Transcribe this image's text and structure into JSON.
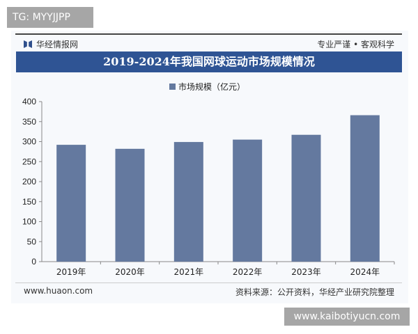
{
  "watermark_top": "TG: MYYJJPP",
  "watermark_bottom": "www.kaibotiyucn.com",
  "header": {
    "brand": "华经情报网",
    "slogan": "专业严谨 • 客观科学"
  },
  "footer": {
    "site": "www.huaon.com",
    "source": "资料来源：公开资料，华经产业研究院整理"
  },
  "colors": {
    "bar": "#64799f",
    "title_bg": "#2f5494"
  },
  "chart_data": {
    "type": "bar",
    "title": "2019-2024年我国网球运动市场规模情况",
    "categories": [
      "2019年",
      "2020年",
      "2021年",
      "2022年",
      "2023年",
      "2024年"
    ],
    "series": [
      {
        "name": "市场规模（亿元）",
        "values": [
          292,
          282,
          299,
          305,
          317,
          366
        ]
      }
    ],
    "ylim": [
      0,
      400
    ],
    "yticks": [
      "0",
      "50",
      "100",
      "150",
      "200",
      "250",
      "300",
      "350",
      "400"
    ],
    "legend": "top",
    "grid": false
  }
}
